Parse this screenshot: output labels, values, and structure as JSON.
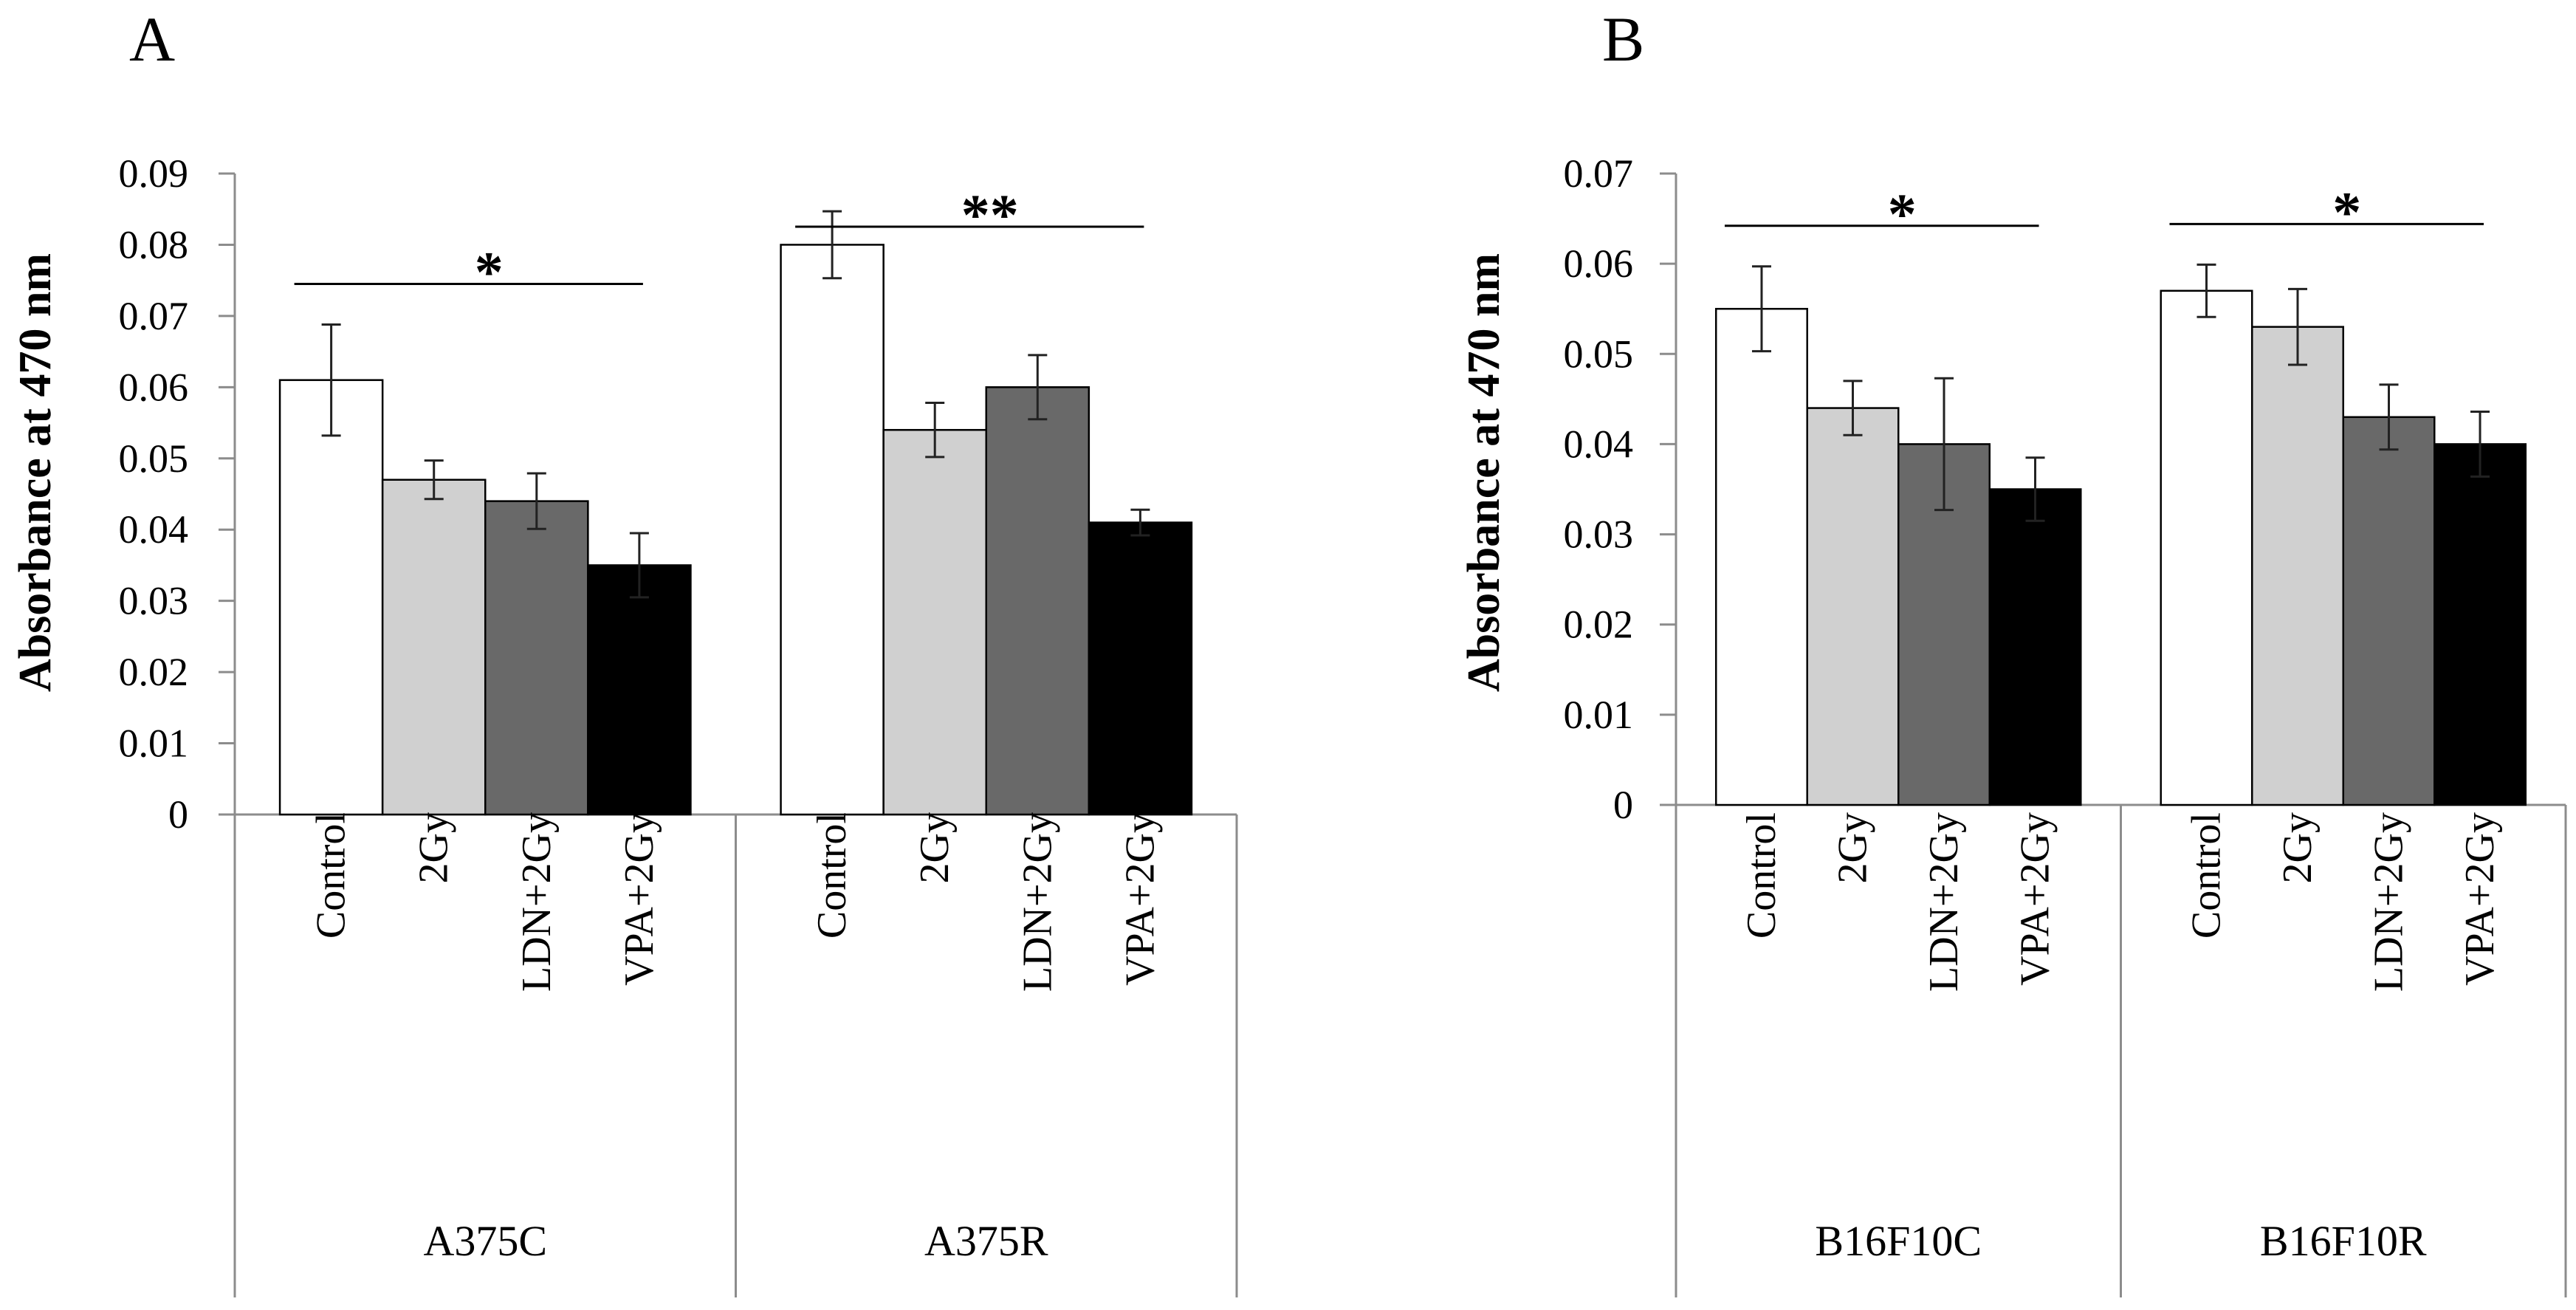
{
  "figure": {
    "panels": [
      {
        "letter": "A",
        "ylabel": "Absorbance at 470 nm",
        "chart": 0
      },
      {
        "letter": "B",
        "ylabel": "Absorbance at 470 nm",
        "chart": 1
      }
    ]
  },
  "chart_data": [
    {
      "type": "bar",
      "title": "A",
      "ylabel": "Absorbance at 470 nm",
      "ylim": [
        0,
        0.09
      ],
      "yticks": [
        "0",
        "0.01",
        "0.02",
        "0.03",
        "0.04",
        "0.05",
        "0.06",
        "0.07",
        "0.08",
        "0.09"
      ],
      "colors": [
        "#ffffff",
        "#d0d0d0",
        "#696969",
        "#000000"
      ],
      "groups": [
        {
          "name": "A375C",
          "categories": [
            "Control",
            "2Gy",
            "LDN+2Gy",
            "VPA+2Gy"
          ],
          "values": [
            0.061,
            0.047,
            0.044,
            0.035
          ],
          "errors": [
            0.0078,
            0.0027,
            0.0039,
            0.0045
          ],
          "significance": {
            "label": "*",
            "from": 0,
            "to": 3
          }
        },
        {
          "name": "A375R",
          "categories": [
            "Control",
            "2Gy",
            "LDN+2Gy",
            "VPA+2Gy"
          ],
          "values": [
            0.08,
            0.054,
            0.06,
            0.041
          ],
          "errors": [
            0.0047,
            0.0038,
            0.0045,
            0.0018
          ],
          "significance": {
            "label": "**",
            "from": 0,
            "to": 3
          }
        }
      ]
    },
    {
      "type": "bar",
      "title": "B",
      "ylabel": "Absorbance at 470 nm",
      "ylim": [
        0,
        0.07
      ],
      "yticks": [
        "0",
        "0.01",
        "0.02",
        "0.03",
        "0.04",
        "0.05",
        "0.06",
        "0.07"
      ],
      "colors": [
        "#ffffff",
        "#d0d0d0",
        "#696969",
        "#000000"
      ],
      "groups": [
        {
          "name": "B16F10C",
          "categories": [
            "Control",
            "2Gy",
            "LDN+2Gy",
            "VPA+2Gy"
          ],
          "values": [
            0.055,
            0.044,
            0.04,
            0.035
          ],
          "errors": [
            0.0047,
            0.003,
            0.0073,
            0.0035
          ],
          "significance": {
            "label": "*",
            "from": 0,
            "to": 3
          }
        },
        {
          "name": "B16F10R",
          "categories": [
            "Control",
            "2Gy",
            "LDN+2Gy",
            "VPA+2Gy"
          ],
          "values": [
            0.057,
            0.053,
            0.043,
            0.04
          ],
          "errors": [
            0.0029,
            0.0042,
            0.0036,
            0.0036
          ],
          "significance": {
            "label": "*",
            "from": 0,
            "to": 3
          }
        }
      ]
    }
  ]
}
